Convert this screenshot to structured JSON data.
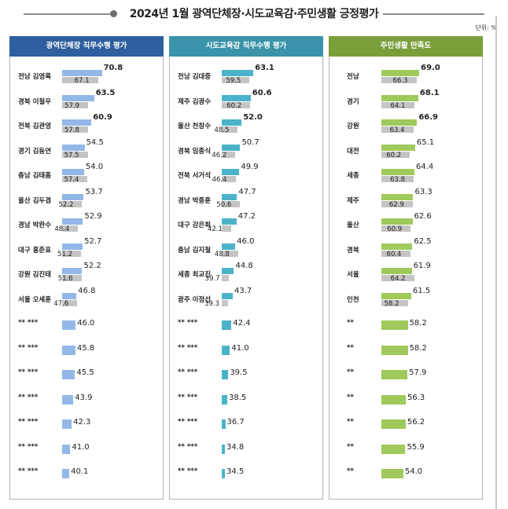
{
  "header": {
    "title": "2024년 1월 광역단체장·시도교육감·주민생활 긍정평가",
    "unit": "단위: %"
  },
  "colors": {
    "panel1_header": "#2e5f9e",
    "panel2_header": "#3a93a8",
    "panel3_header": "#7a9e3a",
    "panel1_bar": "#93b8e8",
    "panel2_bar": "#4bb3c9",
    "panel3_bar": "#9fc95a",
    "prev_bar": "#c4c4c4"
  },
  "chart_data": [
    {
      "type": "bar",
      "orientation": "horizontal",
      "title": "광역단체장 직무수행 평가",
      "categories": [
        "전남 김영록",
        "경북 이철우",
        "전북 김관영",
        "경기 김동연",
        "충남 김태흠",
        "울산 김두겸",
        "경남 박완수",
        "대구 홍준표",
        "강원 김진태",
        "서울 오세훈",
        "** ***",
        "** ***",
        "** ***",
        "** ***",
        "** ***",
        "** ***",
        "** ***"
      ],
      "values": [
        70.8,
        63.5,
        60.9,
        54.5,
        54.0,
        53.7,
        52.9,
        52.7,
        52.2,
        46.8,
        46.0,
        45.8,
        45.5,
        43.9,
        42.3,
        41.0,
        40.1
      ],
      "prev_values": [
        67.1,
        57.9,
        57.8,
        57.5,
        57.4,
        52.2,
        48.4,
        51.2,
        51.6,
        47.6
      ],
      "bold_values": [
        70.8,
        63.5,
        60.9
      ]
    },
    {
      "type": "bar",
      "orientation": "horizontal",
      "title": "시도교육감 직무수행 평가",
      "categories": [
        "전남 김대중",
        "제주 김광수",
        "울산 천창수",
        "경북 임종식",
        "전북 서거석",
        "경남 박종훈",
        "대구 강은희",
        "충남 김지철",
        "세종 최교진",
        "광주 이정선",
        "** ***",
        "** ***",
        "** ***",
        "** ***",
        "** ***",
        "** ***",
        "** ***"
      ],
      "values": [
        63.1,
        60.6,
        52.0,
        50.7,
        49.9,
        47.7,
        47.2,
        46.0,
        44.8,
        43.7,
        42.4,
        41.0,
        39.5,
        38.5,
        36.7,
        34.8,
        34.5
      ],
      "prev_values": [
        59.5,
        60.2,
        48.5,
        46.2,
        46.4,
        50.6,
        42.1,
        48.8,
        39.7,
        39.3
      ],
      "bold_values": [
        63.1,
        60.6,
        52.0
      ]
    },
    {
      "type": "bar",
      "orientation": "horizontal",
      "title": "주민생활 만족도",
      "categories": [
        "전남",
        "경기",
        "강원",
        "대전",
        "세종",
        "제주",
        "울산",
        "경북",
        "서울",
        "인천",
        "**",
        "**",
        "**",
        "**",
        "**",
        "**",
        "**"
      ],
      "values": [
        69.0,
        68.1,
        66.9,
        65.1,
        64.4,
        63.3,
        62.6,
        62.5,
        61.9,
        61.5,
        58.2,
        58.2,
        57.9,
        56.3,
        56.2,
        55.9,
        54.0
      ],
      "prev_values": [
        66.3,
        64.1,
        63.4,
        60.2,
        63.8,
        62.9,
        60.9,
        60.4,
        64.2,
        58.2
      ],
      "bold_values": [
        69.0,
        68.1,
        66.9
      ]
    }
  ]
}
